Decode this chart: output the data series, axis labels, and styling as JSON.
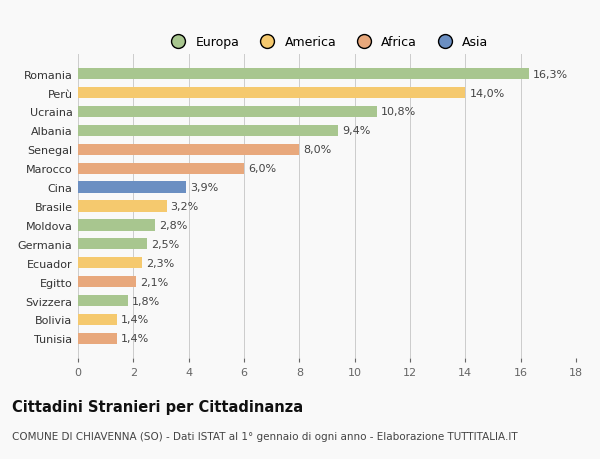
{
  "categories": [
    "Tunisia",
    "Bolivia",
    "Svizzera",
    "Egitto",
    "Ecuador",
    "Germania",
    "Moldova",
    "Brasile",
    "Cina",
    "Marocco",
    "Senegal",
    "Albania",
    "Ucraina",
    "Perù",
    "Romania"
  ],
  "values": [
    1.4,
    1.4,
    1.8,
    2.1,
    2.3,
    2.5,
    2.8,
    3.2,
    3.9,
    6.0,
    8.0,
    9.4,
    10.8,
    14.0,
    16.3
  ],
  "colors": [
    "#e8a87c",
    "#f5c96e",
    "#a8c68f",
    "#e8a87c",
    "#f5c96e",
    "#a8c68f",
    "#a8c68f",
    "#f5c96e",
    "#6b8fc2",
    "#e8a87c",
    "#e8a87c",
    "#a8c68f",
    "#a8c68f",
    "#f5c96e",
    "#a8c68f"
  ],
  "legend_labels": [
    "Europa",
    "America",
    "Africa",
    "Asia"
  ],
  "legend_colors": [
    "#a8c68f",
    "#f5c96e",
    "#e8a87c",
    "#6b8fc2"
  ],
  "xlim": [
    0,
    18
  ],
  "xticks": [
    0,
    2,
    4,
    6,
    8,
    10,
    12,
    14,
    16,
    18
  ],
  "title": "Cittadini Stranieri per Cittadinanza",
  "subtitle": "COMUNE DI CHIAVENNA (SO) - Dati ISTAT al 1° gennaio di ogni anno - Elaborazione TUTTITALIA.IT",
  "bar_height": 0.6,
  "background_color": "#f9f9f9",
  "grid_color": "#cccccc",
  "label_fontsize": 8,
  "tick_fontsize": 8,
  "title_fontsize": 10.5,
  "subtitle_fontsize": 7.5,
  "legend_fontsize": 9
}
